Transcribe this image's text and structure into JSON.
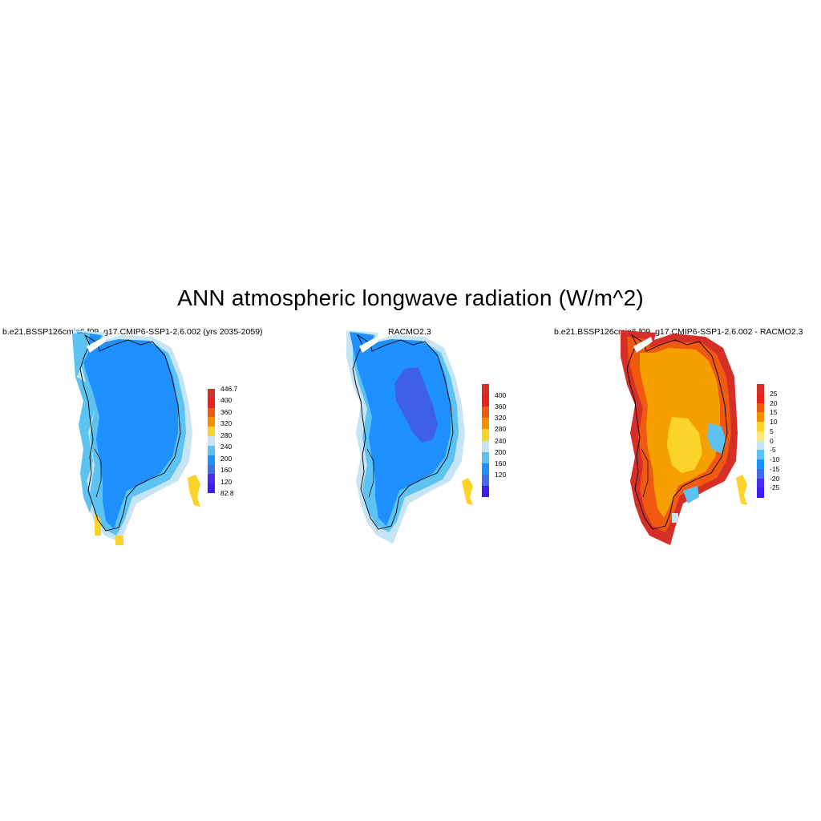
{
  "title": "ANN atmospheric longwave radiation (W/m^2)",
  "panels": [
    {
      "title": "b.e21.BSSP126cmip6.f09_g17.CMIP6-SSP1-2.6.002 (yrs 2035-2059)",
      "colorbar": {
        "labels": [
          "446.7",
          "400",
          "360",
          "320",
          "280",
          "240",
          "200",
          "160",
          "120",
          "82.8"
        ],
        "colors": [
          "#d62f27",
          "#e9231c",
          "#f05a10",
          "#f58f00",
          "#fcd32a",
          "#c6e4f4",
          "#5bc2f2",
          "#1e90ff",
          "#3e6fe8",
          "#4a2cf0",
          "#3b1ef2"
        ]
      },
      "zones": {
        "interior": "#1e90ff",
        "margin": "#5bc2f2",
        "edge": "#c6e4f4",
        "warm": "#fcd32a"
      }
    },
    {
      "title": "RACMO2.3",
      "colorbar": {
        "labels": [
          "400",
          "360",
          "320",
          "280",
          "240",
          "200",
          "160",
          "120"
        ],
        "colors": [
          "#d62f27",
          "#e9231c",
          "#f05a10",
          "#f58f00",
          "#fcd32a",
          "#c6e4f4",
          "#5bc2f2",
          "#1e90ff",
          "#3e6fe8",
          "#3b1ef2"
        ]
      },
      "zones": {
        "core": "#3e60e4",
        "interior": "#1e90ff",
        "margin": "#5bc2f2",
        "edge": "#c6e4f4",
        "warm": "#fcd32a"
      }
    },
    {
      "title": "b.e21.BSSP126cmip6.f09_g17.CMIP6-SSP1-2.6.002 - RACMO2.3",
      "colorbar": {
        "labels": [
          "25",
          "20",
          "15",
          "10",
          "5",
          "0",
          "-5",
          "-10",
          "-15",
          "-20",
          "-25"
        ],
        "colors": [
          "#d62f27",
          "#e9231c",
          "#f05a10",
          "#f58f00",
          "#fcd32a",
          "#fbe87a",
          "#c6e4f4",
          "#5bc2f2",
          "#1e90ff",
          "#3e6fe8",
          "#4a2cf0",
          "#3b1ef2"
        ]
      },
      "zones": {
        "core": "#fcd32a",
        "interior": "#f5a000",
        "margin": "#f05a10",
        "edge": "#d62f27",
        "cold": "#5bc2f2"
      }
    }
  ]
}
